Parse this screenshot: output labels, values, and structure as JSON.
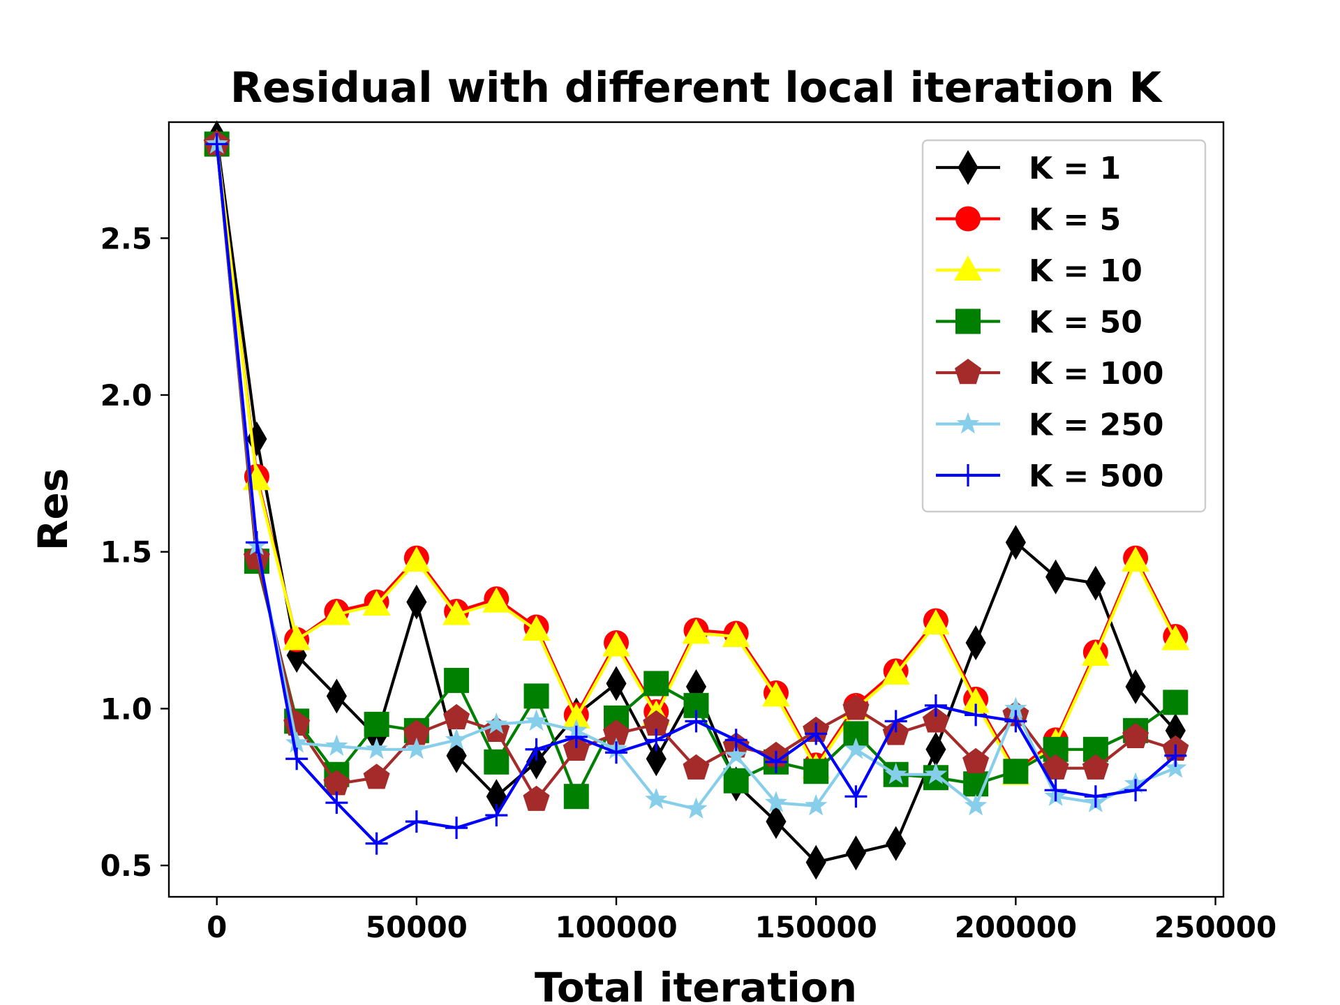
{
  "chart_data": {
    "type": "line",
    "title": "Residual with different local iteration K",
    "xlabel": "Total iteration",
    "ylabel": "Res",
    "xlim": [
      -12000,
      252000
    ],
    "ylim": [
      0.4,
      2.87
    ],
    "xticks": [
      0,
      50000,
      100000,
      150000,
      200000,
      250000
    ],
    "xtick_labels": [
      "0",
      "50000",
      "100000",
      "150000",
      "200000",
      "250000"
    ],
    "yticks": [
      0.5,
      1.0,
      1.5,
      2.0,
      2.5
    ],
    "ytick_labels": [
      "0.5",
      "1.0",
      "1.5",
      "2.0",
      "2.5"
    ],
    "legend_position": "top-right",
    "grid": false,
    "x": [
      0,
      10000,
      20000,
      30000,
      40000,
      50000,
      60000,
      70000,
      80000,
      90000,
      100000,
      110000,
      120000,
      130000,
      140000,
      150000,
      160000,
      170000,
      180000,
      190000,
      200000,
      210000,
      220000,
      230000,
      240000
    ],
    "series": [
      {
        "name": "K = 1",
        "color": "#000000",
        "marker": "thin_diamond",
        "values": [
          2.82,
          1.86,
          1.17,
          1.04,
          0.91,
          1.34,
          0.85,
          0.72,
          0.83,
          0.98,
          1.08,
          0.84,
          1.07,
          0.76,
          0.64,
          0.51,
          0.54,
          0.57,
          0.87,
          1.21,
          1.53,
          1.42,
          1.4,
          1.07,
          0.93
        ]
      },
      {
        "name": "K = 5",
        "color": "#ff0000",
        "marker": "circle",
        "values": [
          2.8,
          1.74,
          1.22,
          1.31,
          1.34,
          1.48,
          1.31,
          1.35,
          1.26,
          0.98,
          1.21,
          0.99,
          1.25,
          1.24,
          1.05,
          0.82,
          1.01,
          1.12,
          1.28,
          1.03,
          0.8,
          0.9,
          1.18,
          1.48,
          1.23
        ]
      },
      {
        "name": "K = 10",
        "color": "#ffff00",
        "marker": "triangle",
        "values": [
          2.8,
          1.73,
          1.22,
          1.3,
          1.33,
          1.47,
          1.3,
          1.34,
          1.25,
          0.97,
          1.2,
          0.98,
          1.24,
          1.23,
          1.04,
          0.81,
          1.0,
          1.11,
          1.27,
          1.02,
          0.79,
          0.89,
          1.17,
          1.47,
          1.22
        ]
      },
      {
        "name": "K = 50",
        "color": "#008000",
        "marker": "square",
        "values": [
          2.8,
          1.47,
          0.96,
          0.79,
          0.95,
          0.93,
          1.09,
          0.83,
          1.04,
          0.72,
          0.97,
          1.08,
          1.01,
          0.77,
          0.83,
          0.8,
          0.92,
          0.79,
          0.78,
          0.76,
          0.8,
          0.87,
          0.87,
          0.93,
          1.02
        ]
      },
      {
        "name": "K = 100",
        "color": "#a52a2a",
        "marker": "pentagon",
        "values": [
          2.8,
          1.48,
          0.95,
          0.76,
          0.78,
          0.92,
          0.97,
          0.93,
          0.71,
          0.87,
          0.92,
          0.95,
          0.81,
          0.88,
          0.85,
          0.93,
          1.0,
          0.92,
          0.96,
          0.83,
          0.98,
          0.81,
          0.81,
          0.91,
          0.87
        ]
      },
      {
        "name": "K = 250",
        "color": "#87ceeb",
        "marker": "star",
        "values": [
          2.8,
          1.52,
          0.89,
          0.88,
          0.87,
          0.87,
          0.9,
          0.95,
          0.96,
          0.93,
          0.87,
          0.71,
          0.68,
          0.85,
          0.7,
          0.69,
          0.87,
          0.79,
          0.79,
          0.69,
          1.0,
          0.72,
          0.7,
          0.76,
          0.81
        ]
      },
      {
        "name": "K = 500",
        "color": "#0000ff",
        "marker": "plus",
        "values": [
          2.8,
          1.53,
          0.84,
          0.7,
          0.57,
          0.64,
          0.62,
          0.66,
          0.87,
          0.91,
          0.86,
          0.9,
          0.96,
          0.9,
          0.83,
          0.92,
          0.72,
          0.96,
          1.01,
          0.98,
          0.96,
          0.74,
          0.72,
          0.74,
          0.85
        ]
      }
    ]
  }
}
